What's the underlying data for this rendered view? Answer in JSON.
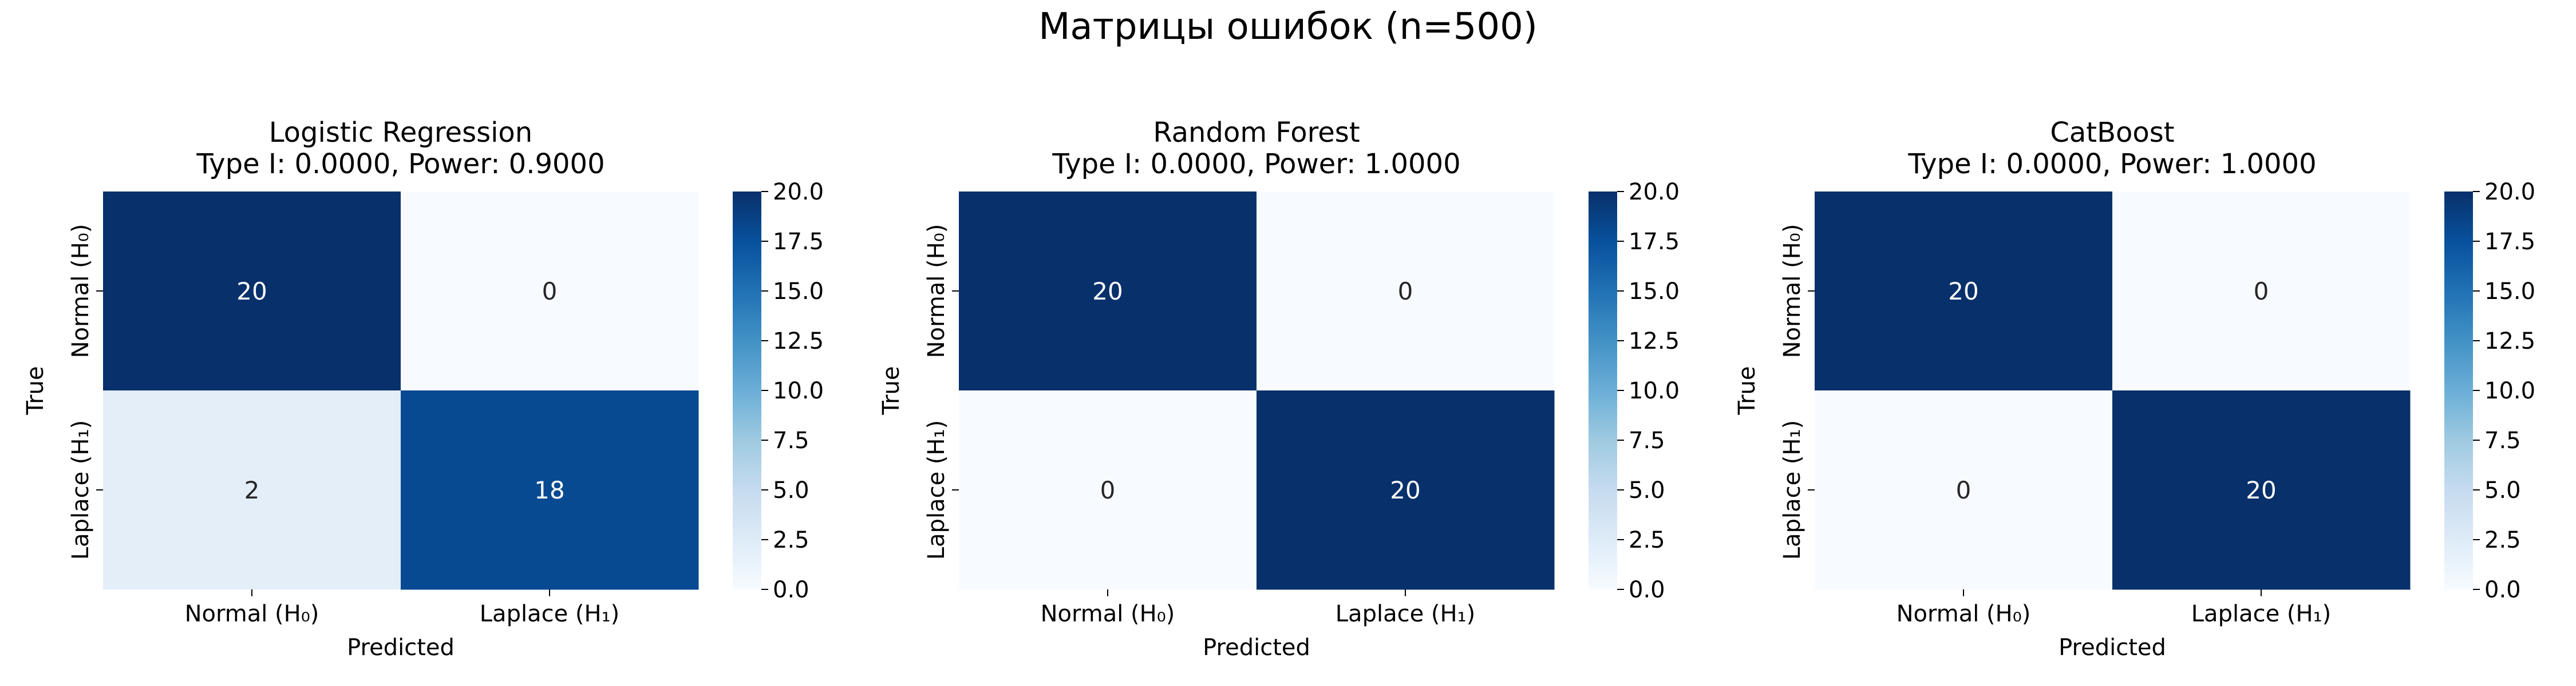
{
  "figure": {
    "suptitle": "Матрицы ошибок (n=500)"
  },
  "chart_data": [
    {
      "type": "heatmap",
      "title_line1": "Logistic Regression",
      "title_line2": "Type I: 0.0000, Power: 0.9000",
      "xlabel": "Predicted",
      "ylabel": "True",
      "x_categories": [
        "Normal (H₀)",
        "Laplace (H₁)"
      ],
      "y_categories": [
        "Normal (H₀)",
        "Laplace (H₁)"
      ],
      "values": [
        [
          20,
          0
        ],
        [
          2,
          18
        ]
      ],
      "colorbar": {
        "vmin": 0,
        "vmax": 20,
        "ticks": [
          "0.0",
          "2.5",
          "5.0",
          "7.5",
          "10.0",
          "12.5",
          "15.0",
          "17.5",
          "20.0"
        ]
      }
    },
    {
      "type": "heatmap",
      "title_line1": "Random Forest",
      "title_line2": "Type I: 0.0000, Power: 1.0000",
      "xlabel": "Predicted",
      "ylabel": "True",
      "x_categories": [
        "Normal (H₀)",
        "Laplace (H₁)"
      ],
      "y_categories": [
        "Normal (H₀)",
        "Laplace (H₁)"
      ],
      "values": [
        [
          20,
          0
        ],
        [
          0,
          20
        ]
      ],
      "colorbar": {
        "vmin": 0,
        "vmax": 20,
        "ticks": [
          "0.0",
          "2.5",
          "5.0",
          "7.5",
          "10.0",
          "12.5",
          "15.0",
          "17.5",
          "20.0"
        ]
      }
    },
    {
      "type": "heatmap",
      "title_line1": "CatBoost",
      "title_line2": "Type I: 0.0000, Power: 1.0000",
      "xlabel": "Predicted",
      "ylabel": "True",
      "x_categories": [
        "Normal (H₀)",
        "Laplace (H₁)"
      ],
      "y_categories": [
        "Normal (H₀)",
        "Laplace (H₁)"
      ],
      "values": [
        [
          20,
          0
        ],
        [
          0,
          20
        ]
      ],
      "colorbar": {
        "vmin": 0,
        "vmax": 20,
        "ticks": [
          "0.0",
          "2.5",
          "5.0",
          "7.5",
          "10.0",
          "12.5",
          "15.0",
          "17.5",
          "20.0"
        ]
      }
    }
  ],
  "colormap": {
    "name": "Blues",
    "low": "#f7fbff",
    "high": "#08306b"
  }
}
